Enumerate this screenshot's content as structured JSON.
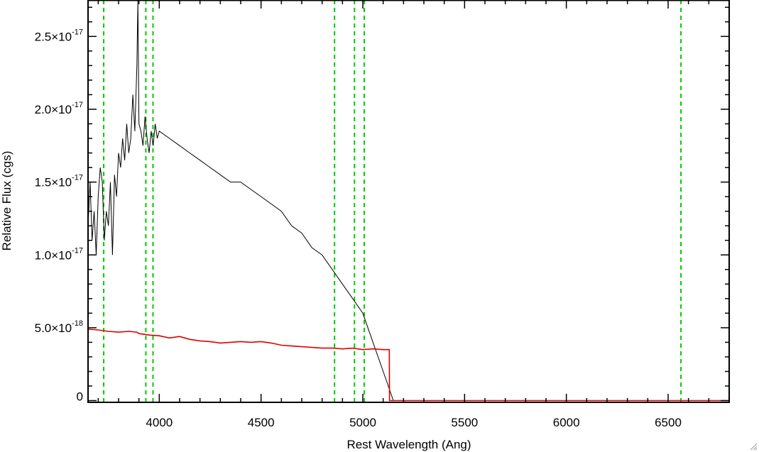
{
  "chart_data": {
    "type": "line",
    "xlabel": "Rest Wavelength (Ang)",
    "ylabel": "Relative Flux (cgs)",
    "xlim": [
      3650,
      6800
    ],
    "ylim": [
      -1.2e-19,
      2.75e-17
    ],
    "x_ticks": [
      {
        "value": 4000,
        "label": "4000"
      },
      {
        "value": 4500,
        "label": "4500"
      },
      {
        "value": 5000,
        "label": "5000"
      },
      {
        "value": 5500,
        "label": "5500"
      },
      {
        "value": 6000,
        "label": "6000"
      },
      {
        "value": 6500,
        "label": "6500"
      }
    ],
    "y_ticks": [
      {
        "value": 0,
        "mant": "0",
        "exp": ""
      },
      {
        "value": 5e-18,
        "mant": "5.0×10",
        "exp": "-18"
      },
      {
        "value": 1e-17,
        "mant": "1.0×10",
        "exp": "-17"
      },
      {
        "value": 1.5e-17,
        "mant": "1.5×10",
        "exp": "-17"
      },
      {
        "value": 2e-17,
        "mant": "2.0×10",
        "exp": "-17"
      },
      {
        "value": 2.5e-17,
        "mant": "2.5×10",
        "exp": "-17"
      }
    ],
    "grid": false,
    "reference_lines": {
      "color": "#00cc00",
      "style": "dashed",
      "x": [
        3727,
        3934,
        3969,
        4861,
        4959,
        5007,
        6563
      ]
    },
    "series": [
      {
        "role": "observed spectrum",
        "color": "#000000",
        "x": [
          3650,
          3660,
          3670,
          3680,
          3690,
          3700,
          3710,
          3720,
          3730,
          3740,
          3750,
          3760,
          3770,
          3780,
          3790,
          3800,
          3810,
          3820,
          3830,
          3840,
          3850,
          3860,
          3870,
          3880,
          3890,
          3895,
          3900,
          3910,
          3920,
          3930,
          3940,
          3950,
          3960,
          3970,
          3980,
          3990,
          4000,
          4050,
          4100,
          4150,
          4200,
          4250,
          4300,
          4350,
          4400,
          4450,
          4500,
          4550,
          4600,
          4650,
          4700,
          4750,
          4800,
          4850,
          4900,
          4950,
          5000,
          5050,
          5100,
          5150
        ],
        "y": [
          1.2e-17,
          1.5e-17,
          1.1e-17,
          1.3e-17,
          1e-17,
          1.4e-17,
          1.6e-17,
          1.5e-17,
          1.1e-17,
          1.3e-17,
          1.2e-17,
          1.5e-17,
          1e-17,
          1.55e-17,
          1.4e-17,
          1.7e-17,
          1.6e-17,
          1.8e-17,
          1.65e-17,
          1.9e-17,
          1.7e-17,
          1.8e-17,
          2.1e-17,
          1.85e-17,
          2.3e-17,
          2.75e-17,
          1.9e-17,
          1.85e-17,
          1.75e-17,
          1.95e-17,
          1.8e-17,
          1.7e-17,
          1.85e-17,
          1.75e-17,
          1.9e-17,
          1.8e-17,
          1.85e-17,
          1.8e-17,
          1.75e-17,
          1.7e-17,
          1.65e-17,
          1.6e-17,
          1.55e-17,
          1.5e-17,
          1.5e-17,
          1.45e-17,
          1.4e-17,
          1.35e-17,
          1.3e-17,
          1.2e-17,
          1.15e-17,
          1.05e-17,
          1e-17,
          9e-18,
          8e-18,
          7e-18,
          6e-18,
          4e-18,
          2e-18,
          0
        ]
      },
      {
        "role": "model spectrum",
        "color": "#dd0000",
        "x": [
          3650,
          3700,
          3750,
          3800,
          3850,
          3890,
          3900,
          3950,
          4000,
          4050,
          4100,
          4150,
          4200,
          4250,
          4300,
          4350,
          4400,
          4450,
          4500,
          4550,
          4600,
          4650,
          4700,
          4750,
          4800,
          4850,
          4900,
          4950,
          5000,
          5050,
          5100,
          5130,
          5131,
          5200,
          6000,
          6800
        ],
        "y": [
          4.9e-18,
          4.85e-18,
          4.75e-18,
          4.7e-18,
          4.75e-18,
          4.7e-18,
          4.6e-18,
          4.5e-18,
          4.45e-18,
          4.3e-18,
          4.4e-18,
          4.2e-18,
          4.1e-18,
          4.05e-18,
          3.95e-18,
          4e-18,
          4.05e-18,
          4e-18,
          4.05e-18,
          3.95e-18,
          3.8e-18,
          3.75e-18,
          3.7e-18,
          3.65e-18,
          3.6e-18,
          3.6e-18,
          3.55e-18,
          3.6e-18,
          3.5e-18,
          3.55e-18,
          3.5e-18,
          3.5e-18,
          0,
          0,
          0,
          0
        ]
      }
    ]
  }
}
